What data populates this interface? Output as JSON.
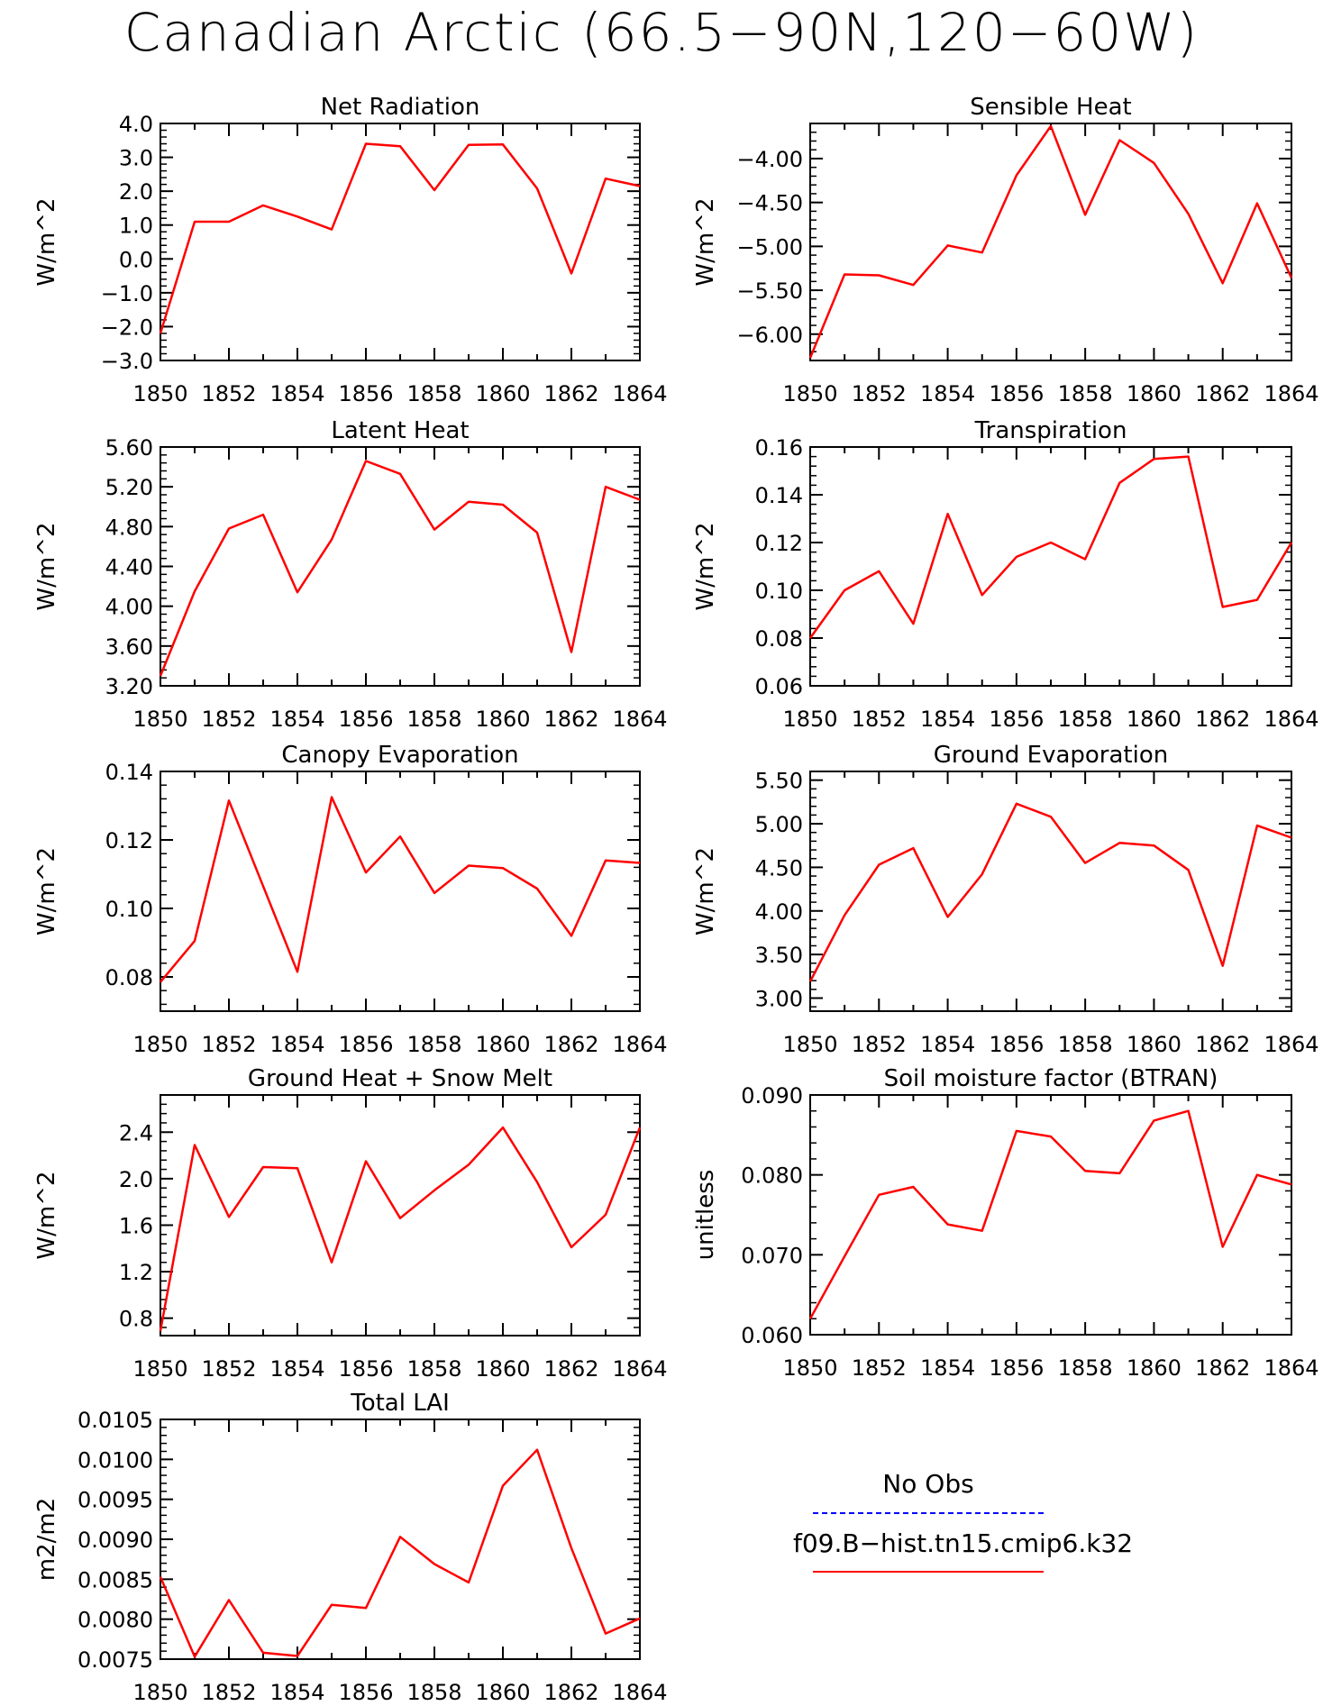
{
  "title": "Canadian Arctic (66.5−90N,120−60W)",
  "colors": {
    "model": "#ff0000",
    "obs": "#0000ff",
    "axis": "#000000"
  },
  "legend": {
    "obs_label": "No Obs",
    "model_label": "f09.B−hist.tn15.cmip6.k32"
  },
  "chart_data": [
    {
      "type": "line",
      "title": "Net Radiation",
      "ylabel": "W/m^2",
      "x": [
        1850,
        1851,
        1852,
        1853,
        1854,
        1855,
        1856,
        1857,
        1858,
        1859,
        1860,
        1861,
        1862,
        1863,
        1864
      ],
      "xticks": [
        "1850",
        "1852",
        "1854",
        "1856",
        "1858",
        "1860",
        "1862",
        "1864"
      ],
      "xlim": [
        1850,
        1864
      ],
      "ylim": [
        -3.0,
        4.0
      ],
      "yticks": [
        "-3.0",
        "-2.0",
        "-1.0",
        "0.0",
        "1.0",
        "2.0",
        "3.0",
        "4.0"
      ],
      "series": [
        {
          "values": [
            -2.2,
            1.1,
            1.1,
            1.58,
            1.25,
            0.87,
            3.4,
            3.33,
            2.03,
            3.37,
            3.38,
            2.08,
            -0.43,
            2.37,
            2.15
          ]
        }
      ]
    },
    {
      "type": "line",
      "title": "Sensible Heat",
      "ylabel": "W/m^2",
      "x": [
        1850,
        1851,
        1852,
        1853,
        1854,
        1855,
        1856,
        1857,
        1858,
        1859,
        1860,
        1861,
        1862,
        1863,
        1864
      ],
      "xticks": [
        "1850",
        "1852",
        "1854",
        "1856",
        "1858",
        "1860",
        "1862",
        "1864"
      ],
      "xlim": [
        1850,
        1864
      ],
      "ylim": [
        -6.3,
        -3.6
      ],
      "yticks": [
        "-6.00",
        "-5.50",
        "-5.00",
        "-4.50",
        "-4.00"
      ],
      "series": [
        {
          "values": [
            -6.27,
            -5.32,
            -5.33,
            -5.44,
            -4.99,
            -5.07,
            -4.19,
            -3.63,
            -4.64,
            -3.79,
            -4.05,
            -4.63,
            -5.42,
            -4.51,
            -5.36
          ]
        }
      ]
    },
    {
      "type": "line",
      "title": "Latent Heat",
      "ylabel": "W/m^2",
      "x": [
        1850,
        1851,
        1852,
        1853,
        1854,
        1855,
        1856,
        1857,
        1858,
        1859,
        1860,
        1861,
        1862,
        1863,
        1864
      ],
      "xticks": [
        "1850",
        "1852",
        "1854",
        "1856",
        "1858",
        "1860",
        "1862",
        "1864"
      ],
      "xlim": [
        1850,
        1864
      ],
      "ylim": [
        3.2,
        5.6
      ],
      "yticks": [
        "3.20",
        "3.60",
        "4.00",
        "4.40",
        "4.80",
        "5.20",
        "5.60"
      ],
      "series": [
        {
          "values": [
            3.3,
            4.15,
            4.78,
            4.92,
            4.14,
            4.67,
            5.46,
            5.33,
            4.77,
            5.05,
            5.02,
            4.74,
            3.54,
            5.2,
            5.07
          ]
        }
      ]
    },
    {
      "type": "line",
      "title": "Transpiration",
      "ylabel": "W/m^2",
      "x": [
        1850,
        1851,
        1852,
        1853,
        1854,
        1855,
        1856,
        1857,
        1858,
        1859,
        1860,
        1861,
        1862,
        1863,
        1864
      ],
      "xticks": [
        "1850",
        "1852",
        "1854",
        "1856",
        "1858",
        "1860",
        "1862",
        "1864"
      ],
      "xlim": [
        1850,
        1864
      ],
      "ylim": [
        0.06,
        0.16
      ],
      "yticks": [
        "0.06",
        "0.08",
        "0.10",
        "0.12",
        "0.14",
        "0.16"
      ],
      "series": [
        {
          "values": [
            0.08,
            0.1,
            0.108,
            0.086,
            0.132,
            0.098,
            0.114,
            0.12,
            0.113,
            0.145,
            0.155,
            0.156,
            0.093,
            0.096,
            0.12
          ]
        }
      ]
    },
    {
      "type": "line",
      "title": "Canopy Evaporation",
      "ylabel": "W/m^2",
      "x": [
        1850,
        1851,
        1852,
        1853,
        1854,
        1855,
        1856,
        1857,
        1858,
        1859,
        1860,
        1861,
        1862,
        1863,
        1864
      ],
      "xticks": [
        "1850",
        "1852",
        "1854",
        "1856",
        "1858",
        "1860",
        "1862",
        "1864"
      ],
      "xlim": [
        1850,
        1864
      ],
      "ylim": [
        0.07,
        0.14
      ],
      "yticks": [
        "0.08",
        "0.10",
        "0.12",
        "0.14"
      ],
      "series": [
        {
          "values": [
            0.0785,
            0.0905,
            0.1315,
            0.1065,
            0.0815,
            0.1325,
            0.1105,
            0.121,
            0.1045,
            0.1125,
            0.1118,
            0.1058,
            0.092,
            0.114,
            0.1133
          ]
        }
      ]
    },
    {
      "type": "line",
      "title": "Ground Evaporation",
      "ylabel": "W/m^2",
      "x": [
        1850,
        1851,
        1852,
        1853,
        1854,
        1855,
        1856,
        1857,
        1858,
        1859,
        1860,
        1861,
        1862,
        1863,
        1864
      ],
      "xticks": [
        "1850",
        "1852",
        "1854",
        "1856",
        "1858",
        "1860",
        "1862",
        "1864"
      ],
      "xlim": [
        1850,
        1864
      ],
      "ylim": [
        2.85,
        5.6
      ],
      "yticks": [
        "3.00",
        "3.50",
        "4.00",
        "4.50",
        "5.00",
        "5.50"
      ],
      "series": [
        {
          "values": [
            3.19,
            3.95,
            4.53,
            4.72,
            3.93,
            4.42,
            5.23,
            5.08,
            4.55,
            4.78,
            4.75,
            4.47,
            3.37,
            4.98,
            4.84
          ]
        }
      ]
    },
    {
      "type": "line",
      "title": "Ground Heat + Snow Melt",
      "ylabel": "W/m^2",
      "x": [
        1850,
        1851,
        1852,
        1853,
        1854,
        1855,
        1856,
        1857,
        1858,
        1859,
        1860,
        1861,
        1862,
        1863,
        1864
      ],
      "xticks": [
        "1850",
        "1852",
        "1854",
        "1856",
        "1858",
        "1860",
        "1862",
        "1864"
      ],
      "xlim": [
        1850,
        1864
      ],
      "ylim": [
        0.65,
        2.72
      ],
      "yticks": [
        "0.8",
        "1.2",
        "1.6",
        "2.0",
        "2.4"
      ],
      "series": [
        {
          "values": [
            0.69,
            2.29,
            1.67,
            2.1,
            2.09,
            1.28,
            2.15,
            1.66,
            1.9,
            2.12,
            2.44,
            1.97,
            1.41,
            1.69,
            2.44
          ]
        }
      ]
    },
    {
      "type": "line",
      "title": "Soil moisture factor (BTRAN)",
      "ylabel": "unitless",
      "x": [
        1850,
        1851,
        1852,
        1853,
        1854,
        1855,
        1856,
        1857,
        1858,
        1859,
        1860,
        1861,
        1862,
        1863,
        1864
      ],
      "xticks": [
        "1850",
        "1852",
        "1854",
        "1856",
        "1858",
        "1860",
        "1862",
        "1864"
      ],
      "xlim": [
        1850,
        1864
      ],
      "ylim": [
        0.06,
        0.09
      ],
      "yticks": [
        "0.060",
        "0.070",
        "0.080",
        "0.090"
      ],
      "series": [
        {
          "values": [
            0.062,
            0.0698,
            0.0775,
            0.0785,
            0.0738,
            0.073,
            0.0855,
            0.0848,
            0.0805,
            0.0802,
            0.0868,
            0.088,
            0.071,
            0.08,
            0.0788
          ]
        }
      ]
    },
    {
      "type": "line",
      "title": "Total LAI",
      "ylabel": "m2/m2",
      "x": [
        1850,
        1851,
        1852,
        1853,
        1854,
        1855,
        1856,
        1857,
        1858,
        1859,
        1860,
        1861,
        1862,
        1863,
        1864
      ],
      "xticks": [
        "1850",
        "1852",
        "1854",
        "1856",
        "1858",
        "1860",
        "1862",
        "1864"
      ],
      "xlim": [
        1850,
        1864
      ],
      "ylim": [
        0.0075,
        0.0105
      ],
      "yticks": [
        "0.0075",
        "0.0080",
        "0.0085",
        "0.0090",
        "0.0095",
        "0.0100",
        "0.0105"
      ],
      "series": [
        {
          "values": [
            0.00853,
            0.00753,
            0.00824,
            0.00758,
            0.00754,
            0.00818,
            0.00814,
            0.00903,
            0.00869,
            0.00846,
            0.00967,
            0.01012,
            0.00889,
            0.00782,
            0.00801
          ]
        }
      ]
    }
  ]
}
